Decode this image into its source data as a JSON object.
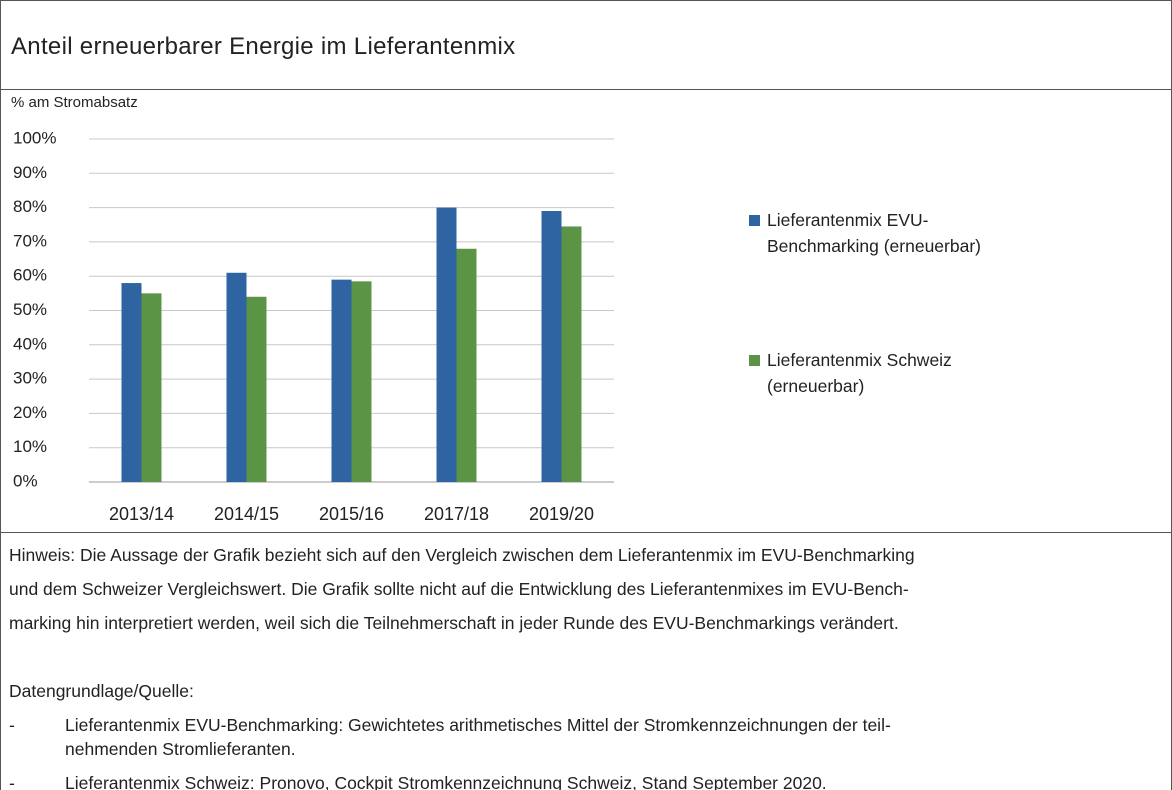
{
  "chart_data": {
    "type": "bar",
    "title": "Anteil erneuerbarer Energie im Lieferantenmix",
    "y_label": "% am Stromabsatz",
    "categories": [
      "2013/14",
      "2014/15",
      "2015/16",
      "2017/18",
      "2019/20"
    ],
    "series": [
      {
        "name": "Lieferantenmix EVU-Benchmarking (erneuerbar)",
        "color": "#2e64a1",
        "values": [
          58,
          61,
          59,
          80,
          79
        ]
      },
      {
        "name": "Lieferantenmix Schweiz (erneuerbar)",
        "color": "#5b9445",
        "values": [
          55,
          54,
          58.5,
          68,
          74.5
        ]
      }
    ],
    "ylim": [
      0,
      100
    ],
    "yticks": [
      {
        "value": 0,
        "label": "0%"
      },
      {
        "value": 10,
        "label": "10%"
      },
      {
        "value": 20,
        "label": "20%"
      },
      {
        "value": 30,
        "label": "30%"
      },
      {
        "value": 40,
        "label": "40%"
      },
      {
        "value": 50,
        "label": "50%"
      },
      {
        "value": 60,
        "label": "60%"
      },
      {
        "value": 70,
        "label": "70%"
      },
      {
        "value": 80,
        "label": "80%"
      },
      {
        "value": 90,
        "label": "90%"
      },
      {
        "value": 100,
        "label": "100%"
      }
    ],
    "grid": true,
    "legend": "right"
  },
  "note": {
    "lines": [
      "Hinweis: Die Aussage der Grafik bezieht sich auf den Vergleich zwischen dem Lieferantenmix im EVU-Benchmarking",
      "und dem Schweizer Vergleichswert. Die Grafik sollte nicht auf die Entwicklung des Lieferantenmixes im EVU-Bench-",
      "marking hin interpretiert werden, weil sich die Teilnehmerschaft in jeder Runde des EVU-Benchmarkings verändert."
    ]
  },
  "source": {
    "heading": "Datengrundlage/Quelle:",
    "items": [
      {
        "bullet": "-",
        "lines": [
          "Lieferantenmix EVU-Benchmarking: Gewichtetes arithmetisches Mittel der Stromkennzeichnungen der teil-",
          "nehmenden Stromlieferanten."
        ]
      },
      {
        "bullet": "-",
        "lines": [
          "Lieferantenmix Schweiz: Pronovo, Cockpit Stromkennzeichnung Schweiz, Stand September 2020."
        ]
      }
    ]
  }
}
